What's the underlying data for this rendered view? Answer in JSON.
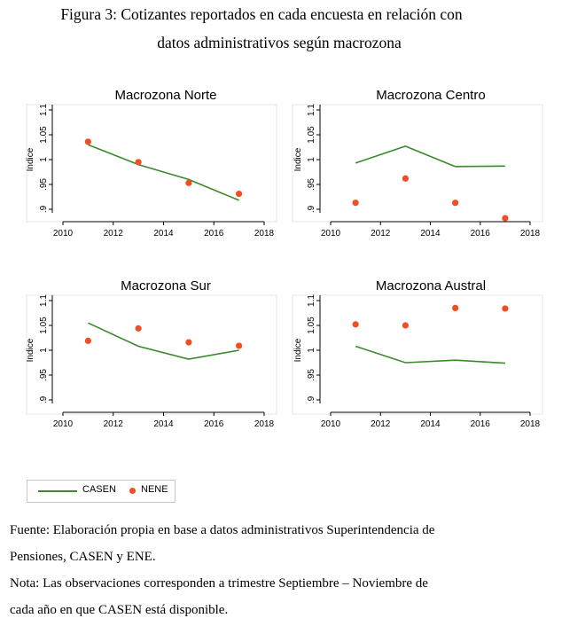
{
  "figure": {
    "title_line1": "Figura 3: Cotizantes reportados en cada encuesta en relación con",
    "title_line2": "datos administrativos según macrozona"
  },
  "colors": {
    "casen": "#3a8a2c",
    "nene": "#f04e23",
    "axis": "#000000"
  },
  "chart_data": [
    {
      "type": "line",
      "title": "Macrozona Norte",
      "ylabel": "Indice",
      "xlim": [
        2010,
        2018
      ],
      "ylim": [
        0.9,
        1.1
      ],
      "xticks": [
        2010,
        2012,
        2014,
        2016,
        2018
      ],
      "yticks": [
        0.9,
        0.95,
        1,
        1.05,
        1.1
      ],
      "ytick_labels": [
        ".9",
        ".95",
        "1",
        "1.05",
        "1.1"
      ],
      "series": [
        {
          "name": "CASEN",
          "style": "line",
          "x": [
            2011,
            2013,
            2015,
            2017
          ],
          "y": [
            1.03,
            0.99,
            0.96,
            0.918
          ]
        },
        {
          "name": "NENE",
          "style": "scatter",
          "x": [
            2011,
            2013,
            2015,
            2017
          ],
          "y": [
            1.036,
            0.995,
            0.953,
            0.931
          ]
        }
      ]
    },
    {
      "type": "line",
      "title": "Macrozona Centro",
      "ylabel": "Indice",
      "xlim": [
        2010,
        2018
      ],
      "ylim": [
        0.9,
        1.1
      ],
      "xticks": [
        2010,
        2012,
        2014,
        2016,
        2018
      ],
      "yticks": [
        0.9,
        0.95,
        1,
        1.05,
        1.1
      ],
      "ytick_labels": [
        ".9",
        ".95",
        "1",
        "1.05",
        "1.1"
      ],
      "series": [
        {
          "name": "CASEN",
          "style": "line",
          "x": [
            2011,
            2013,
            2015,
            2017
          ],
          "y": [
            0.993,
            1.027,
            0.986,
            0.987
          ]
        },
        {
          "name": "NENE",
          "style": "scatter",
          "x": [
            2011,
            2013,
            2015,
            2017
          ],
          "y": [
            0.913,
            0.962,
            0.913,
            0.882
          ]
        }
      ]
    },
    {
      "type": "line",
      "title": "Macrozona Sur",
      "ylabel": "Indice",
      "xlim": [
        2010,
        2018
      ],
      "ylim": [
        0.9,
        1.1
      ],
      "xticks": [
        2010,
        2012,
        2014,
        2016,
        2018
      ],
      "yticks": [
        0.9,
        0.95,
        1,
        1.05,
        1.1
      ],
      "ytick_labels": [
        ".9",
        ".95",
        "1",
        "1.05",
        "1.1"
      ],
      "series": [
        {
          "name": "CASEN",
          "style": "line",
          "x": [
            2011,
            2013,
            2015,
            2017
          ],
          "y": [
            1.055,
            1.008,
            0.982,
            1.0
          ]
        },
        {
          "name": "NENE",
          "style": "scatter",
          "x": [
            2011,
            2013,
            2015,
            2017
          ],
          "y": [
            1.019,
            1.044,
            1.016,
            1.009
          ]
        }
      ]
    },
    {
      "type": "line",
      "title": "Macrozona Austral",
      "ylabel": "Indice",
      "xlim": [
        2010,
        2018
      ],
      "ylim": [
        0.9,
        1.1
      ],
      "xticks": [
        2010,
        2012,
        2014,
        2016,
        2018
      ],
      "yticks": [
        0.9,
        0.95,
        1,
        1.05,
        1.1
      ],
      "ytick_labels": [
        ".9",
        ".95",
        "1",
        "1.05",
        "1.1"
      ],
      "series": [
        {
          "name": "CASEN",
          "style": "line",
          "x": [
            2011,
            2013,
            2015,
            2017
          ],
          "y": [
            1.008,
            0.975,
            0.98,
            0.974
          ]
        },
        {
          "name": "NENE",
          "style": "scatter",
          "x": [
            2011,
            2013,
            2015,
            2017
          ],
          "y": [
            1.052,
            1.05,
            1.085,
            1.084
          ]
        }
      ]
    }
  ],
  "legend": {
    "casen_label": "CASEN",
    "nene_label": "NENE"
  },
  "notes": {
    "source_line1": "Fuente: Elaboración propia en base a datos administrativos Superintendencia de",
    "source_line2": "Pensiones, CASEN y ENE.",
    "note_line1": "Nota: Las observaciones corresponden a trimestre Septiembre – Noviembre de",
    "note_line2": "cada año en que CASEN está disponible."
  }
}
